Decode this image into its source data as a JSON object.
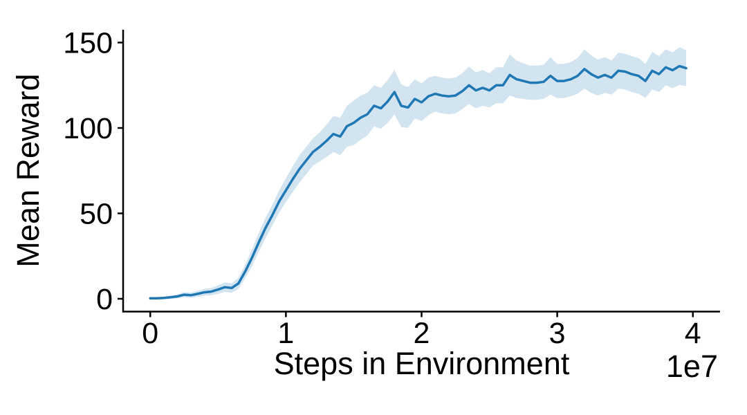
{
  "chart_data": {
    "type": "line",
    "title": "",
    "xlabel": "Steps in Environment",
    "ylabel": "Mean Reward",
    "x_offset_label": "1e7",
    "x_unit": 10000000,
    "xlim": [
      -0.2,
      4.2
    ],
    "ylim": [
      -7.5,
      157.5
    ],
    "xticks": [
      0,
      1,
      2,
      3,
      4
    ],
    "yticks": [
      0,
      50,
      100,
      150
    ],
    "grid": false,
    "legend_position": "none",
    "x": [
      0,
      0.05,
      0.1,
      0.15,
      0.2,
      0.25,
      0.3,
      0.35,
      0.4,
      0.45,
      0.5,
      0.55,
      0.6,
      0.65,
      0.7,
      0.75,
      0.8,
      0.85,
      0.9,
      0.95,
      1.0,
      1.05,
      1.1,
      1.15,
      1.2,
      1.25,
      1.3,
      1.35,
      1.4,
      1.45,
      1.5,
      1.55,
      1.6,
      1.65,
      1.7,
      1.75,
      1.8,
      1.85,
      1.9,
      1.95,
      2.0,
      2.05,
      2.1,
      2.15,
      2.2,
      2.25,
      2.3,
      2.35,
      2.4,
      2.45,
      2.5,
      2.55,
      2.6,
      2.65,
      2.7,
      2.75,
      2.8,
      2.85,
      2.9,
      2.95,
      3.0,
      3.05,
      3.1,
      3.15,
      3.2,
      3.25,
      3.3,
      3.35,
      3.4,
      3.45,
      3.5,
      3.55,
      3.6,
      3.65,
      3.7,
      3.75,
      3.8,
      3.85,
      3.9,
      3.95
    ],
    "series": [
      {
        "name": "mean reward",
        "values": [
          0.3,
          0.3,
          0.5,
          0.9,
          1.4,
          2.4,
          2.1,
          2.9,
          3.8,
          4.2,
          5.4,
          6.8,
          6.3,
          9,
          16,
          24,
          33,
          41.5,
          49,
          57,
          63.5,
          70,
          76,
          81,
          86,
          89,
          92.5,
          96.5,
          95,
          101,
          103,
          106,
          108,
          113,
          111.5,
          115.5,
          121,
          113,
          112,
          117,
          115,
          118.5,
          120,
          119,
          118.5,
          119,
          121.5,
          125,
          122,
          123.5,
          122,
          125,
          125,
          131,
          128.5,
          127.5,
          126.5,
          126.5,
          127,
          130.5,
          127.5,
          127.5,
          128.5,
          130.5,
          134.5,
          131.5,
          129.5,
          131,
          129.5,
          133.5,
          133,
          131.5,
          130.5,
          127.5,
          133.5,
          131.5,
          135.5,
          133.8,
          136.2,
          135
        ]
      }
    ],
    "band_halfwidth": [
      0.5,
      0.5,
      0.7,
      0.9,
      1.1,
      1.5,
      1.5,
      1.8,
      2,
      2.2,
      2.5,
      2.8,
      2.8,
      3.2,
      4,
      5,
      5.5,
      6,
      6,
      6.5,
      7,
      7.5,
      8,
      8,
      8,
      8.5,
      9.5,
      10.5,
      11,
      12,
      13,
      13,
      12.5,
      12,
      12,
      12.5,
      13,
      12.5,
      12,
      11.5,
      11,
      11,
      10.5,
      10.5,
      10.5,
      10.5,
      10.5,
      11,
      10.5,
      10.5,
      10,
      10.5,
      10.5,
      12,
      11,
      10.5,
      10,
      10,
      10,
      11,
      10,
      10,
      10,
      10.5,
      11.5,
      11,
      10.5,
      10.5,
      10,
      10.5,
      10.5,
      10.5,
      10.5,
      10,
      11,
      10.5,
      10.5,
      10.5,
      11,
      10.5
    ],
    "colors": {
      "line": "#1f77b4",
      "band_fill": "#1f77b4",
      "band_opacity": 0.2,
      "axis": "#000000",
      "text": "#000000",
      "background": "#ffffff"
    }
  }
}
